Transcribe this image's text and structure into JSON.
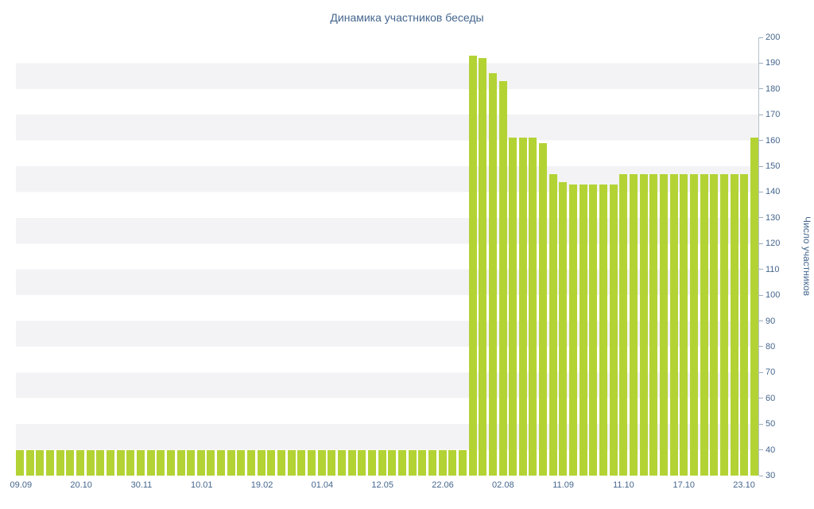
{
  "title": "Динамика участников беседы",
  "colors": {
    "bar": "#b3d335",
    "band": "#f3f3f5",
    "axis_text": "#45668e",
    "axis_line": "#b6c1cc"
  },
  "y_axis": {
    "label": "Число участников",
    "min": 30,
    "max": 200,
    "step": 10,
    "tick_labels": [
      "200",
      "190",
      "180",
      "170",
      "160",
      "150",
      "140",
      "130",
      "120",
      "110",
      "100",
      "90",
      "80",
      "70",
      "60",
      "50",
      "40",
      "30"
    ]
  },
  "chart_data": {
    "type": "bar",
    "title": "Динамика участников беседы",
    "xlabel": "",
    "ylabel": "Число участников",
    "ylim": [
      30,
      200
    ],
    "grid": "alternating horizontal bands every 10 units",
    "legend": "none",
    "bar_color": "#b3d335",
    "x_tick_labels": [
      "09.09",
      "20.10",
      "30.11",
      "10.01",
      "19.02",
      "01.04",
      "12.05",
      "22.06",
      "02.08",
      "11.09",
      "11.10",
      "17.10",
      "23.10"
    ],
    "x_tick_every_n_bars": 6,
    "values": [
      40,
      40,
      40,
      40,
      40,
      40,
      40,
      40,
      40,
      40,
      40,
      40,
      40,
      40,
      40,
      40,
      40,
      40,
      40,
      40,
      40,
      40,
      40,
      40,
      40,
      40,
      40,
      40,
      40,
      40,
      40,
      40,
      40,
      40,
      40,
      40,
      40,
      40,
      40,
      40,
      40,
      40,
      40,
      40,
      40,
      193,
      192,
      186,
      183,
      161,
      161,
      161,
      159,
      147,
      144,
      143,
      143,
      143,
      143,
      143,
      147,
      147,
      147,
      147,
      147,
      147,
      147,
      147,
      147,
      147,
      147,
      147,
      147,
      161
    ]
  }
}
